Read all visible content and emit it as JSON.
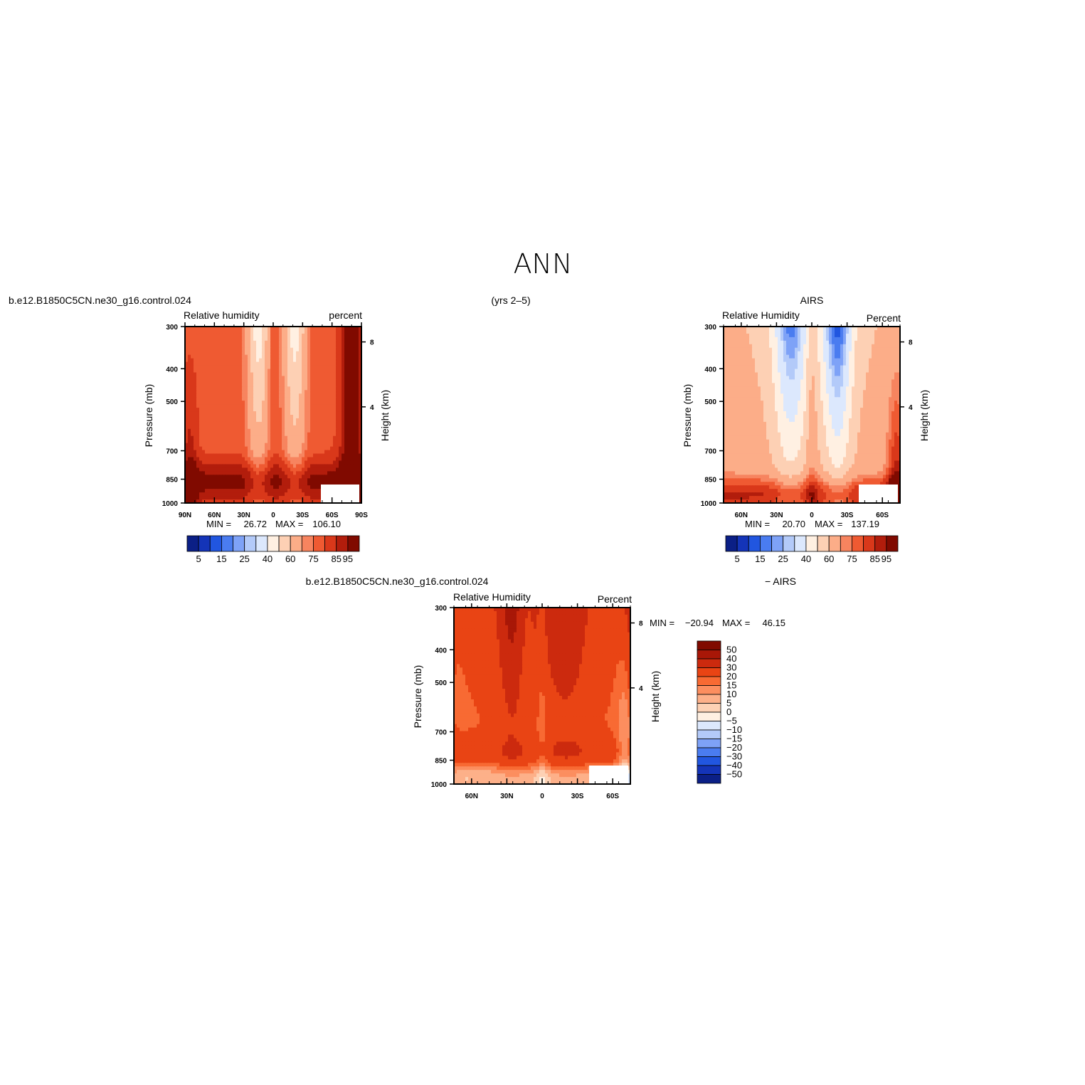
{
  "page_title": "ANN",
  "subtitle": "(yrs 2–5)",
  "panels": [
    {
      "case_title": "b.e12.B1850C5CN.ne30_g16.control.024",
      "field_label": "Relative humidity",
      "units_label": "percent",
      "stats": {
        "min_label": "MIN =",
        "min_value": "26.72",
        "max_label": "MAX =",
        "max_value": "106.10"
      },
      "x_ticks": [
        "90N",
        "60N",
        "30N",
        "0",
        "30S",
        "60S",
        "90S"
      ],
      "colorbar_labels": [
        "5",
        "15",
        "25",
        "40",
        "60",
        "75",
        "85",
        "95"
      ]
    },
    {
      "case_title": "AIRS",
      "field_label": "Relative Humidity",
      "units_label": "Percent",
      "stats": {
        "min_label": "MIN =",
        "min_value": "20.70",
        "max_label": "MAX =",
        "max_value": "137.19"
      },
      "x_ticks": [
        "60N",
        "30N",
        "0",
        "30S",
        "60S"
      ],
      "colorbar_labels": [
        "5",
        "15",
        "25",
        "40",
        "60",
        "75",
        "85",
        "95"
      ]
    },
    {
      "case_title": "b.e12.B1850C5CN.ne30_g16.control.024",
      "case_suffix": "− AIRS",
      "field_label": "Relative Humidity",
      "units_label": "Percent",
      "stats": {
        "min_label": "MIN =",
        "min_value": "−20.94",
        "max_label": "MAX =",
        "max_value": "46.15"
      },
      "x_ticks": [
        "60N",
        "30N",
        "0",
        "30S",
        "60S"
      ],
      "colorbar_labels": [
        "50",
        "40",
        "30",
        "20",
        "15",
        "10",
        "5",
        "0",
        "−5",
        "−10",
        "−15",
        "−20",
        "−30",
        "−40",
        "−50"
      ]
    }
  ],
  "axes": {
    "ylabel": "Pressure (mb)",
    "y2label": "Height (km)",
    "pressure_ticks": [
      "300",
      "400",
      "500",
      "700",
      "850",
      "1000"
    ],
    "height_ticks": [
      "8",
      "4"
    ]
  },
  "colors": {
    "rh_scale": [
      "#0b1f86",
      "#1434b8",
      "#2156e0",
      "#4a7cf0",
      "#7ea2f7",
      "#b3caf9",
      "#dce8fd",
      "#fff0e2",
      "#fdd0b4",
      "#fcad88",
      "#f7845f",
      "#ef5a32",
      "#d9381a",
      "#b21d0c",
      "#800a00"
    ],
    "diff_scale": [
      "#800a00",
      "#a81707",
      "#cc2a0e",
      "#e94414",
      "#f86a33",
      "#fc8e5f",
      "#fdb089",
      "#fdd1b4",
      "#fff0e2",
      "#dce8fd",
      "#b3caf9",
      "#7ea2f7",
      "#4a7cf0",
      "#2156e0",
      "#1434b8",
      "#0b1f86"
    ]
  },
  "chart_data": [
    {
      "type": "heatmap",
      "title": "b.e12.B1850C5CN.ne30_g16.control.024",
      "ylabel": "Pressure (mb)",
      "y2label": "Height (km)",
      "x": [
        "90N",
        "60N",
        "30N",
        "0",
        "30S",
        "60S",
        "90S"
      ],
      "y": [
        300,
        400,
        500,
        700,
        850,
        1000
      ],
      "z_min": 26.72,
      "z_max": 106.1,
      "levels": [
        5,
        10,
        15,
        20,
        25,
        30,
        40,
        50,
        60,
        70,
        75,
        80,
        85,
        90,
        95
      ]
    },
    {
      "type": "heatmap",
      "title": "AIRS",
      "ylabel": "Pressure (mb)",
      "y2label": "Height (km)",
      "x": [
        "60N",
        "30N",
        "0",
        "30S",
        "60S"
      ],
      "y": [
        300,
        400,
        500,
        700,
        850,
        1000
      ],
      "z_min": 20.7,
      "z_max": 137.19,
      "levels": [
        5,
        10,
        15,
        20,
        25,
        30,
        40,
        50,
        60,
        70,
        75,
        80,
        85,
        90,
        95
      ]
    },
    {
      "type": "heatmap",
      "title": "b.e12.B1850C5CN.ne30_g16.control.024 − AIRS",
      "ylabel": "Pressure (mb)",
      "y2label": "Height (km)",
      "x": [
        "60N",
        "30N",
        "0",
        "30S",
        "60S"
      ],
      "y": [
        300,
        400,
        500,
        700,
        850,
        1000
      ],
      "z_min": -20.94,
      "z_max": 46.15,
      "levels": [
        -50,
        -40,
        -30,
        -20,
        -15,
        -10,
        -5,
        0,
        5,
        10,
        15,
        20,
        30,
        40,
        50
      ]
    }
  ]
}
